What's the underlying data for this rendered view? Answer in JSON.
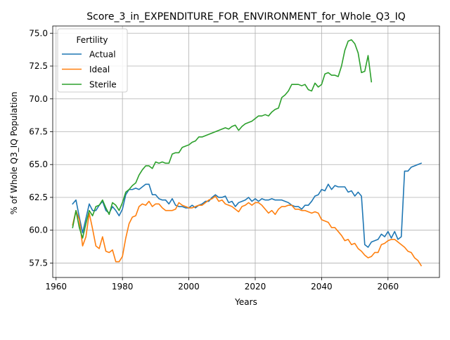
{
  "chart_data": {
    "type": "line",
    "title": "Score_3_in_EXPENDITURE_FOR_ENVIRONMENT_for_Whole_Q3_IQ",
    "xlabel": "Years",
    "ylabel": "% of Whole Q3_IQ Population",
    "xlim": [
      1959,
      2075.5
    ],
    "ylim": [
      56.4,
      75.55
    ],
    "xticks": [
      1960,
      1980,
      2000,
      2020,
      2040,
      2060
    ],
    "yticks": [
      57.5,
      60.0,
      62.5,
      65.0,
      67.5,
      70.0,
      72.5,
      75.0
    ],
    "xtick_labels": [
      "1960",
      "1980",
      "2000",
      "2020",
      "2040",
      "2060"
    ],
    "ytick_labels": [
      "57.5",
      "60.0",
      "62.5",
      "65.0",
      "67.5",
      "70.0",
      "72.5",
      "75.0"
    ],
    "grid": true,
    "legend": {
      "title": "Fertility",
      "position": "upper-left"
    },
    "series": [
      {
        "name": "Actual",
        "color": "#1f77b4",
        "points": [
          [
            1965,
            62.0
          ],
          [
            1966,
            62.3
          ],
          [
            1967,
            61.0
          ],
          [
            1968,
            59.8
          ],
          [
            1969,
            60.9
          ],
          [
            1970,
            62.0
          ],
          [
            1971,
            61.5
          ],
          [
            1972,
            61.5
          ],
          [
            1973,
            61.9
          ],
          [
            1974,
            62.2
          ],
          [
            1975,
            61.5
          ],
          [
            1976,
            61.3
          ],
          [
            1977,
            61.8
          ],
          [
            1978,
            61.5
          ],
          [
            1979,
            61.1
          ],
          [
            1980,
            61.6
          ],
          [
            1981,
            62.7
          ],
          [
            1982,
            63.1
          ],
          [
            1983,
            63.1
          ],
          [
            1984,
            63.2
          ],
          [
            1985,
            63.1
          ],
          [
            1986,
            63.3
          ],
          [
            1987,
            63.5
          ],
          [
            1988,
            63.5
          ],
          [
            1989,
            62.7
          ],
          [
            1990,
            62.7
          ],
          [
            1991,
            62.4
          ],
          [
            1992,
            62.3
          ],
          [
            1993,
            62.3
          ],
          [
            1994,
            62.0
          ],
          [
            1995,
            62.4
          ],
          [
            1996,
            61.9
          ],
          [
            1997,
            61.8
          ],
          [
            1998,
            61.8
          ],
          [
            1999,
            61.7
          ],
          [
            2000,
            61.7
          ],
          [
            2001,
            61.9
          ],
          [
            2002,
            61.7
          ],
          [
            2003,
            61.9
          ],
          [
            2004,
            62.0
          ],
          [
            2005,
            62.2
          ],
          [
            2006,
            62.2
          ],
          [
            2007,
            62.5
          ],
          [
            2008,
            62.7
          ],
          [
            2009,
            62.5
          ],
          [
            2010,
            62.5
          ],
          [
            2011,
            62.6
          ],
          [
            2012,
            62.1
          ],
          [
            2013,
            62.2
          ],
          [
            2014,
            61.8
          ],
          [
            2015,
            62.1
          ],
          [
            2016,
            62.2
          ],
          [
            2017,
            62.3
          ],
          [
            2018,
            62.5
          ],
          [
            2019,
            62.2
          ],
          [
            2020,
            62.4
          ],
          [
            2021,
            62.2
          ],
          [
            2022,
            62.4
          ],
          [
            2023,
            62.3
          ],
          [
            2024,
            62.3
          ],
          [
            2025,
            62.4
          ],
          [
            2026,
            62.3
          ],
          [
            2027,
            62.3
          ],
          [
            2028,
            62.3
          ],
          [
            2029,
            62.2
          ],
          [
            2030,
            62.1
          ],
          [
            2031,
            61.9
          ],
          [
            2032,
            61.8
          ],
          [
            2033,
            61.8
          ],
          [
            2034,
            61.6
          ],
          [
            2035,
            61.9
          ],
          [
            2036,
            61.9
          ],
          [
            2037,
            62.2
          ],
          [
            2038,
            62.6
          ],
          [
            2039,
            62.7
          ],
          [
            2040,
            63.1
          ],
          [
            2041,
            63.0
          ],
          [
            2042,
            63.5
          ],
          [
            2043,
            63.1
          ],
          [
            2044,
            63.4
          ],
          [
            2045,
            63.3
          ],
          [
            2046,
            63.3
          ],
          [
            2047,
            63.3
          ],
          [
            2048,
            62.9
          ],
          [
            2049,
            63.0
          ],
          [
            2050,
            62.6
          ],
          [
            2051,
            62.9
          ],
          [
            2052,
            62.6
          ],
          [
            2053,
            58.9
          ],
          [
            2054,
            58.7
          ],
          [
            2055,
            59.1
          ],
          [
            2056,
            59.2
          ],
          [
            2057,
            59.3
          ],
          [
            2058,
            59.7
          ],
          [
            2059,
            59.5
          ],
          [
            2060,
            59.9
          ],
          [
            2061,
            59.4
          ],
          [
            2062,
            59.9
          ],
          [
            2063,
            59.3
          ],
          [
            2064,
            59.5
          ],
          [
            2065,
            64.5
          ],
          [
            2066,
            64.5
          ],
          [
            2067,
            64.8
          ],
          [
            2068,
            64.9
          ],
          [
            2069,
            65.0
          ],
          [
            2070,
            65.1
          ]
        ]
      },
      {
        "name": "Ideal",
        "color": "#ff7f0e",
        "points": [
          [
            1965,
            60.4
          ],
          [
            1966,
            61.5
          ],
          [
            1967,
            60.8
          ],
          [
            1968,
            58.8
          ],
          [
            1969,
            59.5
          ],
          [
            1970,
            61.3
          ],
          [
            1971,
            60.1
          ],
          [
            1972,
            58.8
          ],
          [
            1973,
            58.6
          ],
          [
            1974,
            59.5
          ],
          [
            1975,
            58.4
          ],
          [
            1976,
            58.3
          ],
          [
            1977,
            58.5
          ],
          [
            1978,
            57.6
          ],
          [
            1979,
            57.6
          ],
          [
            1980,
            58.0
          ],
          [
            1981,
            59.4
          ],
          [
            1982,
            60.5
          ],
          [
            1983,
            61.0
          ],
          [
            1984,
            61.1
          ],
          [
            1985,
            61.8
          ],
          [
            1986,
            62.0
          ],
          [
            1987,
            61.9
          ],
          [
            1988,
            62.2
          ],
          [
            1989,
            61.8
          ],
          [
            1990,
            62.0
          ],
          [
            1991,
            62.0
          ],
          [
            1992,
            61.7
          ],
          [
            1993,
            61.5
          ],
          [
            1994,
            61.5
          ],
          [
            1995,
            61.5
          ],
          [
            1996,
            61.6
          ],
          [
            1997,
            62.1
          ],
          [
            1998,
            61.9
          ],
          [
            1999,
            61.8
          ],
          [
            2000,
            61.7
          ],
          [
            2001,
            61.7
          ],
          [
            2002,
            61.8
          ],
          [
            2003,
            61.9
          ],
          [
            2004,
            61.9
          ],
          [
            2005,
            62.1
          ],
          [
            2006,
            62.3
          ],
          [
            2007,
            62.4
          ],
          [
            2008,
            62.6
          ],
          [
            2009,
            62.2
          ],
          [
            2010,
            62.3
          ],
          [
            2011,
            62.0
          ],
          [
            2012,
            61.9
          ],
          [
            2013,
            61.8
          ],
          [
            2014,
            61.6
          ],
          [
            2015,
            61.4
          ],
          [
            2016,
            61.8
          ],
          [
            2017,
            61.9
          ],
          [
            2018,
            62.1
          ],
          [
            2019,
            61.9
          ],
          [
            2020,
            62.1
          ],
          [
            2021,
            62.1
          ],
          [
            2022,
            61.9
          ],
          [
            2023,
            61.6
          ],
          [
            2024,
            61.3
          ],
          [
            2025,
            61.5
          ],
          [
            2026,
            61.2
          ],
          [
            2027,
            61.6
          ],
          [
            2028,
            61.8
          ],
          [
            2029,
            61.8
          ],
          [
            2030,
            61.9
          ],
          [
            2031,
            61.9
          ],
          [
            2032,
            61.6
          ],
          [
            2033,
            61.6
          ],
          [
            2034,
            61.5
          ],
          [
            2035,
            61.5
          ],
          [
            2036,
            61.4
          ],
          [
            2037,
            61.3
          ],
          [
            2038,
            61.4
          ],
          [
            2039,
            61.3
          ],
          [
            2040,
            60.8
          ],
          [
            2041,
            60.7
          ],
          [
            2042,
            60.6
          ],
          [
            2043,
            60.2
          ],
          [
            2044,
            60.2
          ],
          [
            2045,
            59.9
          ],
          [
            2046,
            59.6
          ],
          [
            2047,
            59.2
          ],
          [
            2048,
            59.3
          ],
          [
            2049,
            58.9
          ],
          [
            2050,
            59.0
          ],
          [
            2051,
            58.6
          ],
          [
            2052,
            58.4
          ],
          [
            2053,
            58.1
          ],
          [
            2054,
            57.9
          ],
          [
            2055,
            58.0
          ],
          [
            2056,
            58.3
          ],
          [
            2057,
            58.3
          ],
          [
            2058,
            58.9
          ],
          [
            2059,
            59.0
          ],
          [
            2060,
            59.2
          ],
          [
            2061,
            59.3
          ],
          [
            2062,
            59.3
          ],
          [
            2063,
            59.1
          ],
          [
            2064,
            58.9
          ],
          [
            2065,
            58.7
          ],
          [
            2066,
            58.4
          ],
          [
            2067,
            58.3
          ],
          [
            2068,
            57.9
          ],
          [
            2069,
            57.7
          ],
          [
            2070,
            57.3
          ]
        ]
      },
      {
        "name": "Sterile",
        "color": "#2ca02c",
        "points": [
          [
            1965,
            60.2
          ],
          [
            1966,
            61.5
          ],
          [
            1967,
            60.2
          ],
          [
            1968,
            59.4
          ],
          [
            1969,
            60.5
          ],
          [
            1970,
            61.5
          ],
          [
            1971,
            61.1
          ],
          [
            1972,
            61.8
          ],
          [
            1973,
            61.9
          ],
          [
            1974,
            62.3
          ],
          [
            1975,
            61.7
          ],
          [
            1976,
            61.2
          ],
          [
            1977,
            62.1
          ],
          [
            1978,
            61.9
          ],
          [
            1979,
            61.5
          ],
          [
            1980,
            62.1
          ],
          [
            1981,
            62.9
          ],
          [
            1982,
            63.1
          ],
          [
            1983,
            63.4
          ],
          [
            1984,
            63.6
          ],
          [
            1985,
            64.2
          ],
          [
            1986,
            64.6
          ],
          [
            1987,
            64.9
          ],
          [
            1988,
            64.9
          ],
          [
            1989,
            64.7
          ],
          [
            1990,
            65.2
          ],
          [
            1991,
            65.1
          ],
          [
            1992,
            65.2
          ],
          [
            1993,
            65.1
          ],
          [
            1994,
            65.1
          ],
          [
            1995,
            65.8
          ],
          [
            1996,
            65.9
          ],
          [
            1997,
            65.9
          ],
          [
            1998,
            66.3
          ],
          [
            1999,
            66.4
          ],
          [
            2000,
            66.5
          ],
          [
            2001,
            66.7
          ],
          [
            2002,
            66.8
          ],
          [
            2003,
            67.1
          ],
          [
            2004,
            67.1
          ],
          [
            2005,
            67.2
          ],
          [
            2006,
            67.3
          ],
          [
            2007,
            67.4
          ],
          [
            2008,
            67.5
          ],
          [
            2009,
            67.6
          ],
          [
            2010,
            67.7
          ],
          [
            2011,
            67.8
          ],
          [
            2012,
            67.7
          ],
          [
            2013,
            67.9
          ],
          [
            2014,
            68.0
          ],
          [
            2015,
            67.6
          ],
          [
            2016,
            67.9
          ],
          [
            2017,
            68.1
          ],
          [
            2018,
            68.2
          ],
          [
            2019,
            68.3
          ],
          [
            2020,
            68.5
          ],
          [
            2021,
            68.7
          ],
          [
            2022,
            68.7
          ],
          [
            2023,
            68.8
          ],
          [
            2024,
            68.7
          ],
          [
            2025,
            69.0
          ],
          [
            2026,
            69.2
          ],
          [
            2027,
            69.3
          ],
          [
            2028,
            70.1
          ],
          [
            2029,
            70.3
          ],
          [
            2030,
            70.6
          ],
          [
            2031,
            71.1
          ],
          [
            2032,
            71.1
          ],
          [
            2033,
            71.1
          ],
          [
            2034,
            71.0
          ],
          [
            2035,
            71.1
          ],
          [
            2036,
            70.7
          ],
          [
            2037,
            70.6
          ],
          [
            2038,
            71.2
          ],
          [
            2039,
            70.9
          ],
          [
            2040,
            71.1
          ],
          [
            2041,
            71.9
          ],
          [
            2042,
            72.0
          ],
          [
            2043,
            71.8
          ],
          [
            2044,
            71.8
          ],
          [
            2045,
            71.7
          ],
          [
            2046,
            72.5
          ],
          [
            2047,
            73.7
          ],
          [
            2048,
            74.4
          ],
          [
            2049,
            74.5
          ],
          [
            2050,
            74.2
          ],
          [
            2051,
            73.5
          ],
          [
            2052,
            72.0
          ],
          [
            2053,
            72.1
          ],
          [
            2054,
            73.3
          ],
          [
            2055,
            71.3
          ]
        ]
      }
    ]
  }
}
